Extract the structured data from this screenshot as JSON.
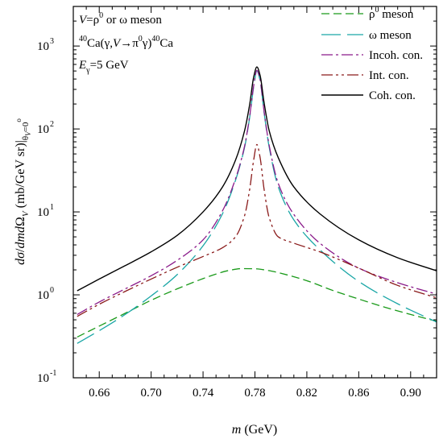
{
  "chart_data": {
    "type": "line",
    "xlabel": "m (GeV)",
    "ylabel": "dσ/dmdΩV (mb/GeV sr)|θV=0°",
    "xlim": [
      0.64,
      0.92
    ],
    "ylim": [
      0.1,
      3000
    ],
    "yscale": "log",
    "grid": false,
    "legend_position": "top-right",
    "x_ticks": [
      0.66,
      0.7,
      0.74,
      0.78,
      0.82,
      0.86,
      0.9
    ],
    "x_tick_labels": [
      "0.66",
      "0.70",
      "0.74",
      "0.78",
      "0.82",
      "0.86",
      "0.90"
    ],
    "y_ticks": [
      {
        "value": 0.1,
        "mantissa": "10",
        "exponent": "-1"
      },
      {
        "value": 1,
        "mantissa": "10",
        "exponent": "0"
      },
      {
        "value": 10,
        "mantissa": "10",
        "exponent": "1"
      },
      {
        "value": 100,
        "mantissa": "10",
        "exponent": "2"
      },
      {
        "value": 1000,
        "mantissa": "10",
        "exponent": "3"
      }
    ],
    "annotations": [
      "V=ρ0 or ω meson",
      "40Ca(γ,V→π0γ)40Ca",
      "Eγ=5 GeV"
    ],
    "series": [
      {
        "name": "ρ0 meson",
        "color": "#1a9a1a",
        "dash": "10,5",
        "x": [
          0.643,
          0.66,
          0.68,
          0.7,
          0.72,
          0.74,
          0.75,
          0.76,
          0.77,
          0.78,
          0.79,
          0.8,
          0.82,
          0.84,
          0.86,
          0.88,
          0.9,
          0.92
        ],
        "y": [
          0.31,
          0.42,
          0.6,
          0.86,
          1.18,
          1.57,
          1.78,
          1.97,
          2.07,
          2.06,
          1.97,
          1.82,
          1.48,
          1.13,
          0.89,
          0.71,
          0.58,
          0.48
        ]
      },
      {
        "name": "ω meson",
        "color": "#1aa6a6",
        "dash": "24,8",
        "x": [
          0.643,
          0.66,
          0.68,
          0.7,
          0.72,
          0.74,
          0.755,
          0.765,
          0.772,
          0.776,
          0.779,
          0.7815,
          0.784,
          0.787,
          0.791,
          0.798,
          0.81,
          0.83,
          0.86,
          0.89,
          0.92
        ],
        "y": [
          0.26,
          0.37,
          0.58,
          0.97,
          1.75,
          3.9,
          9.5,
          24,
          60,
          140,
          320,
          500,
          380,
          160,
          60,
          20,
          8,
          3.5,
          1.45,
          0.78,
          0.47
        ]
      },
      {
        "name": "Incoh. con.",
        "color": "#8a1a8a",
        "dash": "14,4,3,4",
        "x": [
          0.643,
          0.66,
          0.68,
          0.7,
          0.72,
          0.74,
          0.755,
          0.765,
          0.772,
          0.776,
          0.779,
          0.7815,
          0.784,
          0.787,
          0.791,
          0.798,
          0.81,
          0.83,
          0.86,
          0.89,
          0.92
        ],
        "y": [
          0.58,
          0.82,
          1.18,
          1.7,
          2.6,
          4.6,
          10.3,
          25,
          62,
          145,
          330,
          510,
          390,
          165,
          63,
          22,
          9.3,
          4.2,
          2.1,
          1.4,
          1.02
        ]
      },
      {
        "name": "Int. con.",
        "color": "#8a1a1a",
        "dash": "14,4,3,4,3,4",
        "x": [
          0.643,
          0.66,
          0.68,
          0.7,
          0.72,
          0.74,
          0.755,
          0.765,
          0.772,
          0.776,
          0.779,
          0.7815,
          0.784,
          0.787,
          0.791,
          0.798,
          0.81,
          0.83,
          0.86,
          0.89,
          0.92
        ],
        "y": [
          0.55,
          0.77,
          1.1,
          1.55,
          2.15,
          2.9,
          3.7,
          5.0,
          9.0,
          19,
          42,
          65,
          45,
          19,
          8.5,
          5.0,
          4.2,
          3.3,
          2.1,
          1.3,
          0.92
        ]
      },
      {
        "name": "Coh. con.",
        "color": "#000000",
        "dash": "",
        "x": [
          0.643,
          0.66,
          0.68,
          0.7,
          0.72,
          0.74,
          0.755,
          0.765,
          0.772,
          0.776,
          0.779,
          0.7815,
          0.784,
          0.787,
          0.791,
          0.798,
          0.81,
          0.83,
          0.86,
          0.89,
          0.92
        ],
        "y": [
          1.12,
          1.55,
          2.25,
          3.3,
          5.2,
          10,
          20,
          42,
          95,
          200,
          420,
          560,
          440,
          210,
          95,
          45,
          20,
          9.5,
          4.6,
          2.8,
          1.95
        ]
      }
    ]
  }
}
